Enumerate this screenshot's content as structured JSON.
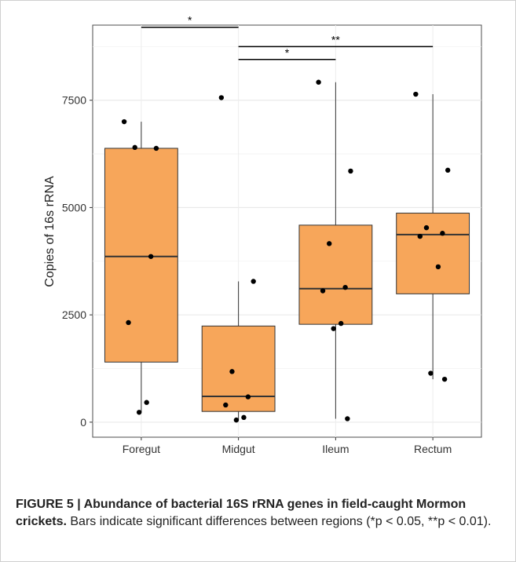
{
  "chart_data": {
    "type": "boxplot",
    "xlabel": "",
    "ylabel": "Copies of 16s rRNA",
    "ylim": [
      -350,
      9250
    ],
    "yticks": [
      0,
      2500,
      5000,
      7500
    ],
    "ytick_labels": [
      "0",
      "2500",
      "5000",
      "7500"
    ],
    "grid": true,
    "box_color": "#F7A65A",
    "categories": [
      "Foregut",
      "Midgut",
      "Ileum",
      "Rectum"
    ],
    "boxes": [
      {
        "category": "Foregut",
        "whisker_low": 230,
        "q1": 1400,
        "median": 3860,
        "q3": 6380,
        "whisker_high": 7000
      },
      {
        "category": "Midgut",
        "whisker_low": 50,
        "q1": 250,
        "median": 600,
        "q3": 2240,
        "whisker_high": 3280
      },
      {
        "category": "Ileum",
        "whisker_low": 80,
        "q1": 2280,
        "median": 3110,
        "q3": 4590,
        "whisker_high": 7920
      },
      {
        "category": "Rectum",
        "whisker_low": 1000,
        "q1": 2990,
        "median": 4370,
        "q3": 4870,
        "whisker_high": 7640
      }
    ],
    "points": [
      {
        "category": "Foregut",
        "values": [
          7000,
          6380,
          6400,
          3860,
          2320,
          460,
          230
        ]
      },
      {
        "category": "Midgut",
        "values": [
          7560,
          3280,
          1180,
          590,
          400,
          110,
          50
        ]
      },
      {
        "category": "Ileum",
        "values": [
          7920,
          5850,
          4160,
          3140,
          3060,
          2300,
          2180,
          80
        ]
      },
      {
        "category": "Rectum",
        "values": [
          7640,
          5870,
          4530,
          4400,
          4330,
          3620,
          1140,
          1000
        ]
      }
    ],
    "significance": [
      {
        "from": "Foregut",
        "to": "Midgut",
        "label": "*",
        "y": 9200
      },
      {
        "from": "Midgut",
        "to": "Rectum",
        "label": "**",
        "y": 8750
      },
      {
        "from": "Midgut",
        "to": "Ileum",
        "label": "*",
        "y": 8450
      }
    ]
  },
  "caption": {
    "title": "FIGURE 5 | Abundance of bacterial 16S rRNA genes in field-caught Mormon crickets.",
    "body": " Bars indicate significant differences between regions (*p < 0.05, **p < 0.01)."
  }
}
